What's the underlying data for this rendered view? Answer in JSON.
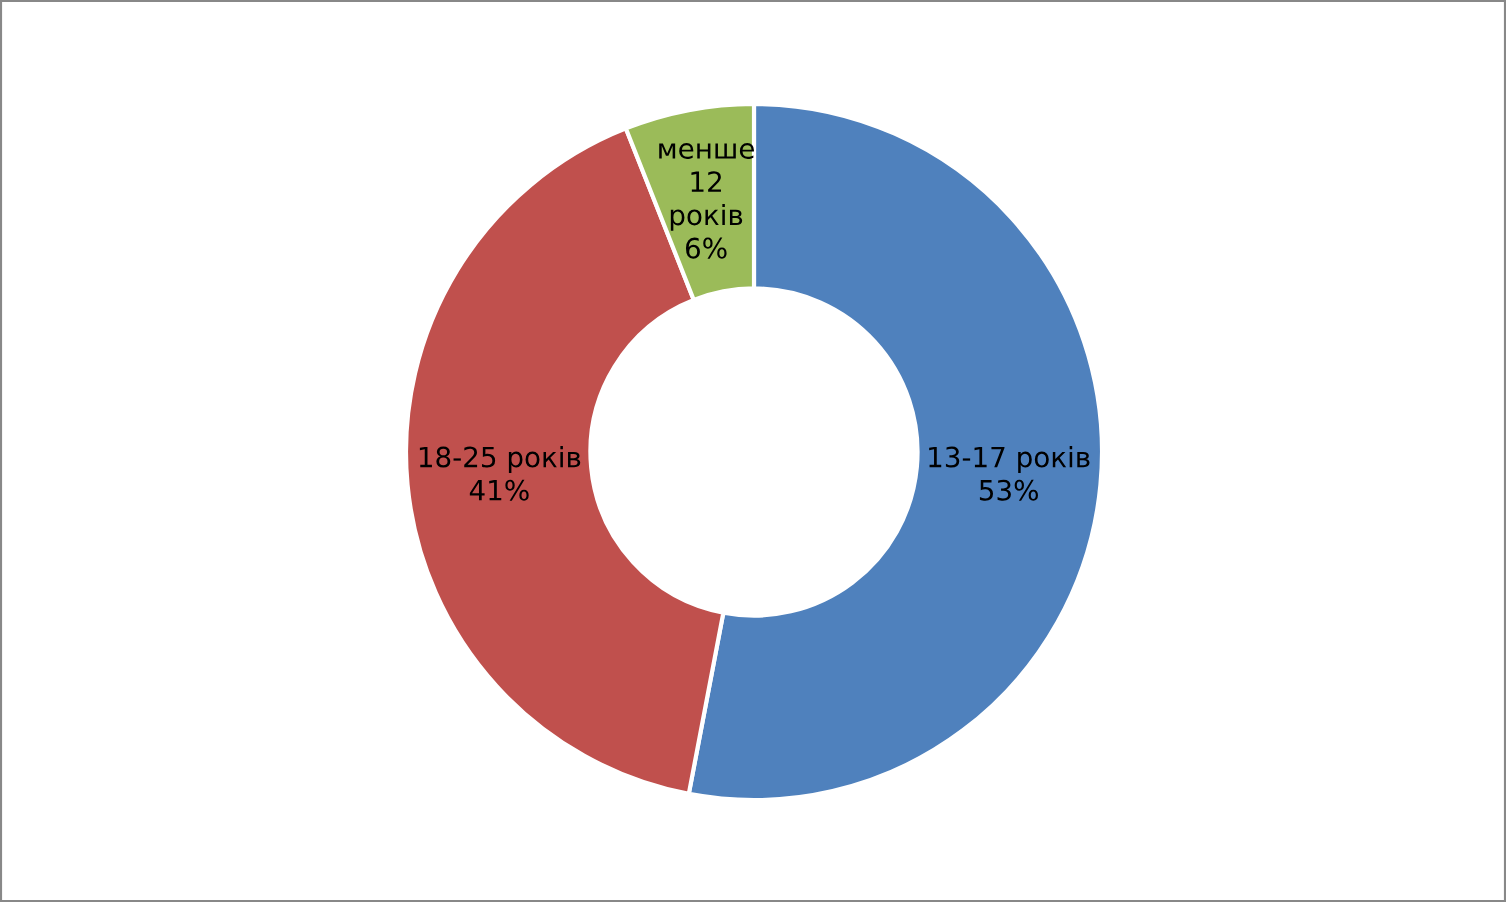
{
  "chart_data": {
    "type": "donut",
    "categories": [
      "13-17 років",
      "18-25 років",
      "менше 12 років"
    ],
    "values": [
      53,
      41,
      6
    ],
    "colors": [
      "#4f81bd",
      "#c0504d",
      "#9bbb59"
    ],
    "value_labels": [
      "53%",
      "41%",
      "6%"
    ],
    "legend": false
  }
}
